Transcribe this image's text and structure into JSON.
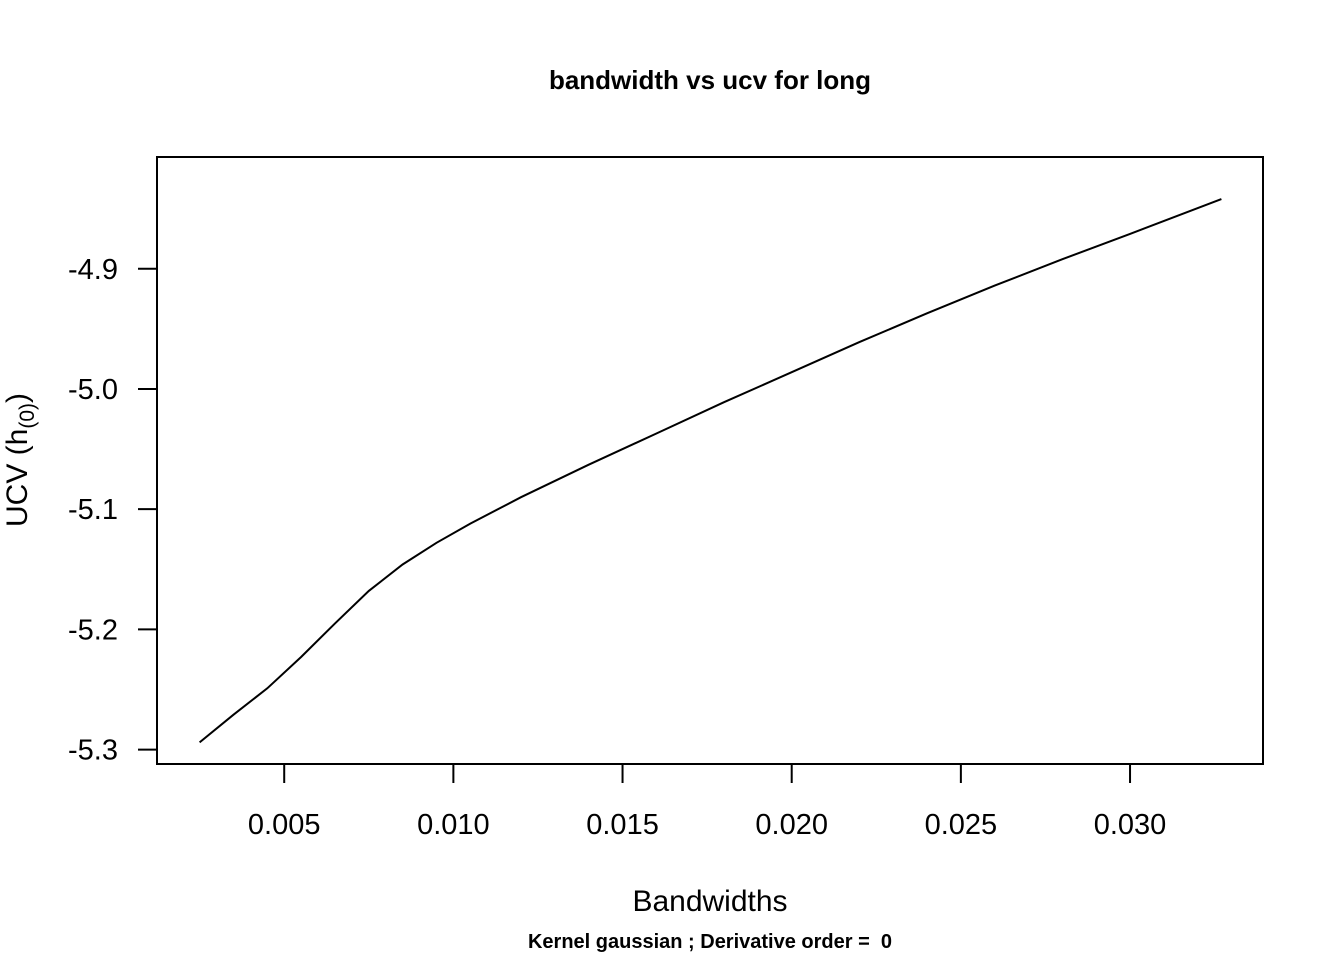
{
  "chart_data": {
    "type": "line",
    "title": "bandwidth vs ucv for long",
    "subtitle": "Kernel gaussian ; Derivative order =  0",
    "xlabel": "Bandwidths",
    "ylabel_main": "UCV (h",
    "ylabel_sub": "(0)",
    "ylabel_close": ")",
    "xlim": [
      0.00124,
      0.03393
    ],
    "ylim": [
      -5.312,
      -4.807
    ],
    "x_ticks": [
      {
        "value": 0.005,
        "label": "0.005"
      },
      {
        "value": 0.01,
        "label": "0.010"
      },
      {
        "value": 0.015,
        "label": "0.015"
      },
      {
        "value": 0.02,
        "label": "0.020"
      },
      {
        "value": 0.025,
        "label": "0.025"
      },
      {
        "value": 0.03,
        "label": "0.030"
      }
    ],
    "y_ticks": [
      {
        "value": -5.3,
        "label": "-5.3"
      },
      {
        "value": -5.2,
        "label": "-5.2"
      },
      {
        "value": -5.1,
        "label": "-5.1"
      },
      {
        "value": -5.0,
        "label": "-5.0"
      },
      {
        "value": -4.9,
        "label": "-4.9"
      }
    ],
    "grid": false,
    "series": [
      {
        "x": [
          0.0025,
          0.0035,
          0.0045,
          0.0055,
          0.0065,
          0.0075,
          0.0085,
          0.0095,
          0.0105,
          0.012,
          0.014,
          0.016,
          0.018,
          0.02,
          0.022,
          0.024,
          0.026,
          0.028,
          0.03,
          0.0327
        ],
        "y": [
          -5.294,
          -5.271,
          -5.249,
          -5.223,
          -5.195,
          -5.168,
          -5.146,
          -5.128,
          -5.112,
          -5.09,
          -5.063,
          -5.037,
          -5.011,
          -4.986,
          -4.961,
          -4.937,
          -4.914,
          -4.892,
          -4.871,
          -4.842
        ]
      }
    ]
  }
}
